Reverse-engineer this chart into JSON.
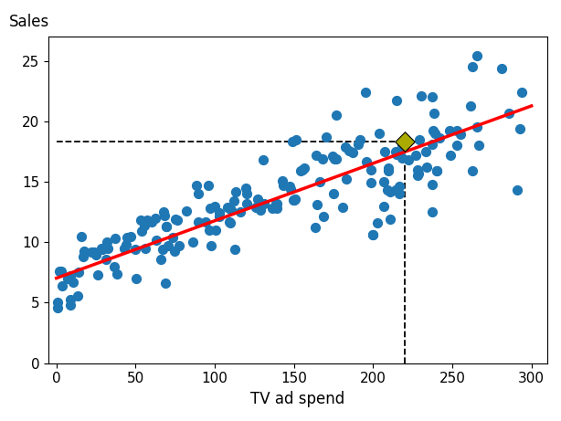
{
  "scatter_x": [
    230.1,
    44.5,
    17.2,
    151.5,
    180.8,
    8.7,
    57.5,
    120.2,
    8.6,
    199.8,
    66.1,
    214.7,
    23.8,
    97.5,
    204.1,
    195.4,
    67.8,
    281.4,
    69.2,
    147.3,
    218.4,
    237.4,
    13.2,
    228.3,
    62.3,
    262.9,
    142.9,
    240.1,
    248.8,
    70.6,
    292.9,
    112.9,
    97.2,
    265.6,
    95.7,
    290.7,
    266.9,
    74.7,
    43.1,
    228.0,
    202.5,
    177.0,
    293.6,
    206.9,
    25.1,
    175.1,
    89.7,
    239.9,
    227.2,
    66.9,
    199.8,
    100.4,
    216.4,
    182.6,
    262.7,
    198.9,
    7.3,
    136.2,
    210.8,
    210.7,
    53.5,
    261.3,
    239.3,
    102.7,
    131.1,
    69.0,
    31.5,
    139.3,
    237.4,
    216.8,
    128.6,
    155.6,
    63.3,
    88.7,
    29.0,
    32.4,
    207.5,
    138.9,
    76.4,
    125.7,
    108.1,
    120.2,
    8.6,
    218.5,
    89.7,
    43.9,
    167.8,
    187.1,
    184.9,
    163.5,
    233.8,
    81.8,
    0.7,
    237.4,
    13.8,
    233.4,
    110.4,
    229.5,
    252.6,
    148.0,
    60.1,
    3.1,
    75.3,
    252.9,
    238.0,
    36.9,
    46.9,
    241.7,
    3.9,
    216.8,
    28.6,
    109.8,
    112.0,
    26.2,
    286.0,
    255.4,
    69.2,
    265.8,
    228.4,
    214.7,
    183.1,
    127.3,
    1.8,
    15.9,
    209.2,
    0.7,
    168.4,
    222.4,
    149.8,
    38.2,
    94.2,
    177.0,
    56.2,
    206.8,
    96.3,
    175.7,
    163.9,
    214.1,
    55.3,
    150.9,
    196.0,
    77.4,
    86.3,
    191.7,
    237.1,
    10.6,
    31.7,
    116.0,
    170.2,
    190.6,
    73.4,
    166.5,
    209.5,
    139.2,
    156.6,
    248.4,
    198.9,
    68.4,
    214.9,
    36.3,
    209.7,
    100.0,
    113.0,
    164.5,
    150.4,
    50.0,
    16.9,
    119.4,
    130.4,
    214.2,
    148.9,
    50.4,
    53.8,
    238.2,
    109.0,
    103.0,
    174.3,
    22.0,
    154.0,
    143.0
  ],
  "scatter_y": [
    22.1,
    10.4,
    9.3,
    18.5,
    12.9,
    7.2,
    11.8,
    13.2,
    4.8,
    10.6,
    8.6,
    17.4,
    9.2,
    9.7,
    19.0,
    22.4,
    12.5,
    24.4,
    11.3,
    14.6,
    18.0,
    12.5,
    5.6,
    15.5,
    12.0,
    15.9,
    15.1,
    15.9,
    17.2,
    9.7,
    19.4,
    9.4,
    12.8,
    25.4,
    14.7,
    14.3,
    18.0,
    9.3,
    9.5,
    16.0,
    11.6,
    20.5,
    22.4,
    13.0,
    9.0,
    14.0,
    14.0,
    15.9,
    17.2,
    9.4,
    10.6,
    11.0,
    17.4,
    17.9,
    24.5,
    14.9,
    7.0,
    12.8,
    11.9,
    14.2,
    11.8,
    21.3,
    19.0,
    12.1,
    13.2,
    6.6,
    8.6,
    13.2,
    18.1,
    14.0,
    12.7,
    16.0,
    10.2,
    14.7,
    9.4,
    9.5,
    17.5,
    13.2,
    11.8,
    12.9,
    12.9,
    14.0,
    5.3,
    17.0,
    11.7,
    9.8,
    16.9,
    17.4,
    17.6,
    11.2,
    16.2,
    12.6,
    4.6,
    14.8,
    7.5,
    17.5,
    12.7,
    18.5,
    18.0,
    14.4,
    11.7,
    7.6,
    11.9,
    19.2,
    19.2,
    10.3,
    10.5,
    18.6,
    6.4,
    14.6,
    9.5,
    11.6,
    13.4,
    7.3,
    20.7,
    18.9,
    11.3,
    19.5,
    15.7,
    17.3,
    15.2,
    13.6,
    7.6,
    10.5,
    14.3,
    5.0,
    12.1,
    16.8,
    13.5,
    7.4,
    11.7,
    16.9,
    9.5,
    15.0,
    11.0,
    16.9,
    17.2,
    17.5,
    11.4,
    13.6,
    16.7,
    9.7,
    10.0,
    18.5,
    22.0,
    6.7,
    10.0,
    12.5,
    18.7,
    18.1,
    10.4,
    15.0,
    15.9,
    12.8,
    16.1,
    19.2,
    16.0,
    12.2,
    21.7,
    8.0,
    16.1,
    13.0,
    14.2,
    13.1,
    13.5,
    9.4,
    8.8,
    14.5,
    16.8,
    14.3,
    18.3,
    7.0,
    10.9,
    20.7,
    11.7,
    12.4,
    17.1,
    9.2,
    15.9,
    14.7
  ],
  "line_x": [
    0,
    300
  ],
  "line_y": [
    7.032594,
    21.27227
  ],
  "highlight_x": 220.0,
  "highlight_y": 18.3,
  "scatter_color": "#1f77b4",
  "line_color": "red",
  "highlight_color": "#aaaa00",
  "xlabel": "TV ad spend",
  "ylabel": "Sales",
  "xlim": [
    -5,
    310
  ],
  "ylim": [
    0,
    27
  ],
  "xticks": [
    0,
    50,
    100,
    150,
    200,
    250,
    300
  ],
  "yticks": [
    0,
    5,
    10,
    15,
    20,
    25
  ],
  "scatter_size": 50,
  "figsize": [
    6.14,
    4.61
  ],
  "dpi": 100
}
